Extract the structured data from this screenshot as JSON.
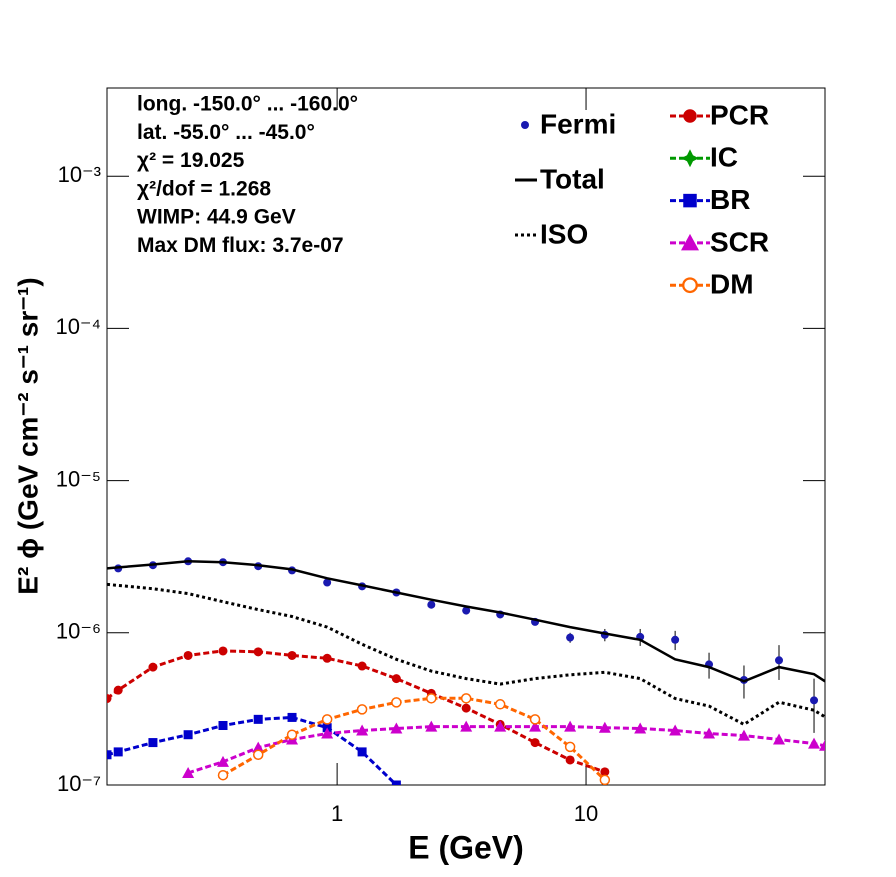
{
  "chart_data": {
    "type": "line",
    "log_x": true,
    "log_y": true,
    "xlim": [
      0.119,
      91.2
    ],
    "ylim": [
      1e-07,
      0.0038
    ],
    "xticks": [
      1,
      10
    ],
    "yticks": [
      {
        "value": 1e-07,
        "label": "10⁻⁷"
      },
      {
        "value": 1e-06,
        "label": "10⁻⁶"
      },
      {
        "value": 1e-05,
        "label": "10⁻⁵"
      },
      {
        "value": 0.0001,
        "label": "10⁻⁴"
      },
      {
        "value": 0.001,
        "label": "10⁻³"
      }
    ],
    "xlabel": "E (GeV)",
    "ylabel": "E² ϕ (GeV cm⁻² s⁻¹ sr⁻¹)",
    "annotations": [
      "long. -150.0° ... -160.0°",
      "lat. -55.0° ... -45.0°",
      "χ² = 19.025",
      "χ²/dof = 1.268",
      "WIMP: 44.9 GeV",
      "Max DM flux: 3.7e-07"
    ],
    "x": [
      0.119,
      0.132,
      0.182,
      0.252,
      0.348,
      0.482,
      0.659,
      0.912,
      1.26,
      1.73,
      2.39,
      3.3,
      4.52,
      6.24,
      8.63,
      11.9,
      16.5,
      22.8,
      31.2,
      43.1,
      59.6,
      82.4,
      91.2
    ],
    "series": [
      {
        "name": "Fermi",
        "color": "#1a1ab0",
        "style": "points",
        "x": [
          0.132,
          0.182,
          0.252,
          0.348,
          0.482,
          0.659,
          0.912,
          1.26,
          1.73,
          2.39,
          3.3,
          4.52,
          6.24,
          8.63,
          11.9,
          16.5,
          22.8,
          31.2,
          43.1,
          59.6,
          82.4
        ],
        "values": [
          2.65e-06,
          2.78e-06,
          2.95e-06,
          2.91e-06,
          2.74e-06,
          2.57e-06,
          2.14e-06,
          2.02e-06,
          1.84e-06,
          1.53e-06,
          1.4e-06,
          1.32e-06,
          1.18e-06,
          9.3e-07,
          9.7e-07,
          9.4e-07,
          9e-07,
          6.2e-07,
          4.9e-07,
          6.6e-07,
          3.6e-07
        ],
        "errors": [
          4e-08,
          4e-08,
          4e-08,
          4e-08,
          4e-08,
          4e-08,
          3e-08,
          3e-08,
          3e-08,
          3e-08,
          3e-08,
          3e-08,
          4e-08,
          7e-08,
          9e-08,
          1.2e-07,
          1.3e-07,
          1.2e-07,
          1.2e-07,
          1.7e-07,
          1.4e-07
        ]
      },
      {
        "name": "Total",
        "color": "#000000",
        "style": "solid",
        "values": [
          2.65e-06,
          2.69e-06,
          2.81e-06,
          2.95e-06,
          2.91e-06,
          2.78e-06,
          2.61e-06,
          2.28e-06,
          2.05e-06,
          1.84e-06,
          1.65e-06,
          1.49e-06,
          1.36e-06,
          1.22e-06,
          1.09e-06,
          9.9e-07,
          9e-07,
          6.7e-07,
          5.95e-07,
          4.8e-07,
          5.95e-07,
          5.35e-07,
          4.8e-07
        ]
      },
      {
        "name": "ISO",
        "color": "#000000",
        "style": "dotted",
        "values": [
          2.08e-06,
          2.05e-06,
          1.95e-06,
          1.81e-06,
          1.6e-06,
          1.42e-06,
          1.28e-06,
          1.09e-06,
          8.4e-07,
          6.7e-07,
          5.6e-07,
          5e-07,
          4.6e-07,
          5e-07,
          5.3e-07,
          5.5e-07,
          5e-07,
          3.7e-07,
          3.3e-07,
          2.5e-07,
          3.5e-07,
          3.1e-07,
          2.8e-07
        ]
      },
      {
        "name": "PCR",
        "color": "#cc0000",
        "style": "dashed",
        "marker": "circle",
        "values": [
          3.7e-07,
          4.2e-07,
          5.95e-07,
          7.1e-07,
          7.6e-07,
          7.5e-07,
          7.1e-07,
          6.8e-07,
          6.05e-07,
          5e-07,
          4e-07,
          3.2e-07,
          2.5e-07,
          1.9e-07,
          1.46e-07,
          1.22e-07,
          null,
          null,
          null,
          null,
          null,
          null,
          null
        ]
      },
      {
        "name": "IC",
        "color": "#009900",
        "style": "dashed",
        "marker": "star",
        "values": [
          null,
          null,
          null,
          null,
          null,
          null,
          null,
          null,
          null,
          null,
          null,
          null,
          null,
          null,
          null,
          null,
          null,
          null,
          null,
          null,
          null,
          null,
          null
        ]
      },
      {
        "name": "BR",
        "color": "#0000cc",
        "style": "dashed",
        "marker": "square",
        "values": [
          1.58e-07,
          1.65e-07,
          1.9e-07,
          2.14e-07,
          2.46e-07,
          2.7e-07,
          2.78e-07,
          2.38e-07,
          1.65e-07,
          1e-07,
          null,
          null,
          null,
          null,
          null,
          null,
          null,
          null,
          null,
          null,
          null,
          null,
          null
        ]
      },
      {
        "name": "SCR",
        "color": "#cc00cc",
        "style": "dashed",
        "marker": "triangle",
        "values": [
          null,
          null,
          null,
          1.2e-07,
          1.42e-07,
          1.76e-07,
          1.99e-07,
          2.18e-07,
          2.28e-07,
          2.35e-07,
          2.42e-07,
          2.42e-07,
          2.42e-07,
          2.42e-07,
          2.42e-07,
          2.38e-07,
          2.35e-07,
          2.28e-07,
          2.18e-07,
          2.11e-07,
          1.99e-07,
          1.87e-07,
          1.81e-07
        ]
      },
      {
        "name": "DM",
        "color": "#ff6600",
        "style": "dashed",
        "marker": "open-circle",
        "values": [
          null,
          null,
          null,
          null,
          1.16e-07,
          1.58e-07,
          2.14e-07,
          2.7e-07,
          3.14e-07,
          3.49e-07,
          3.71e-07,
          3.71e-07,
          3.39e-07,
          2.7e-07,
          1.78e-07,
          1.08e-07,
          null,
          null,
          null,
          null,
          null,
          null,
          null
        ]
      }
    ]
  }
}
